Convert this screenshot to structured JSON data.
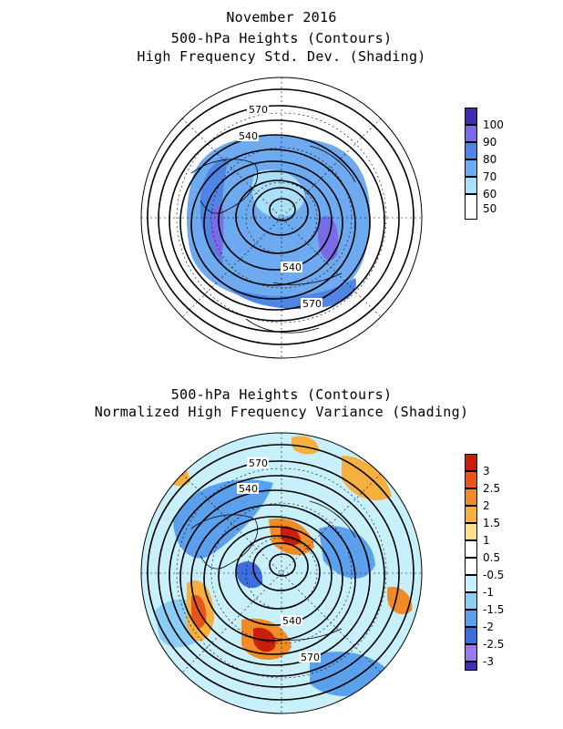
{
  "top_panel": {
    "title_line1": "November 2016",
    "title_line2": "500-hPa Heights (Contours)",
    "title_line3": "High Frequency Std. Dev. (Shading)",
    "contour_labels": [
      "570",
      "540",
      "540",
      "570"
    ],
    "colorbar": {
      "levels": [
        "100",
        "90",
        "80",
        "70",
        "60",
        "50"
      ],
      "colors": [
        "#3c2fb0",
        "#7a6be6",
        "#4f86e6",
        "#6eaaf0",
        "#aadff8",
        "#ffffff"
      ]
    }
  },
  "bottom_panel": {
    "title_line1": "500-hPa Heights (Contours)",
    "title_line2": "Normalized High Frequency Variance (Shading)",
    "contour_labels": [
      "570",
      "540",
      "540",
      "570"
    ],
    "colorbar": {
      "levels": [
        "3",
        "2.5",
        "2",
        "1.5",
        "1",
        "0.5",
        "-0.5",
        "-1",
        "-1.5",
        "-2",
        "-2.5",
        "-3"
      ],
      "colors": [
        "#c81e0a",
        "#e8541a",
        "#f08c28",
        "#f5b040",
        "#fde08a",
        "#ffffff",
        "#ffffff",
        "#c8f0fa",
        "#8ccdf5",
        "#5aa0ec",
        "#3c6ee0",
        "#9a7af0",
        "#4030b8"
      ]
    }
  }
}
